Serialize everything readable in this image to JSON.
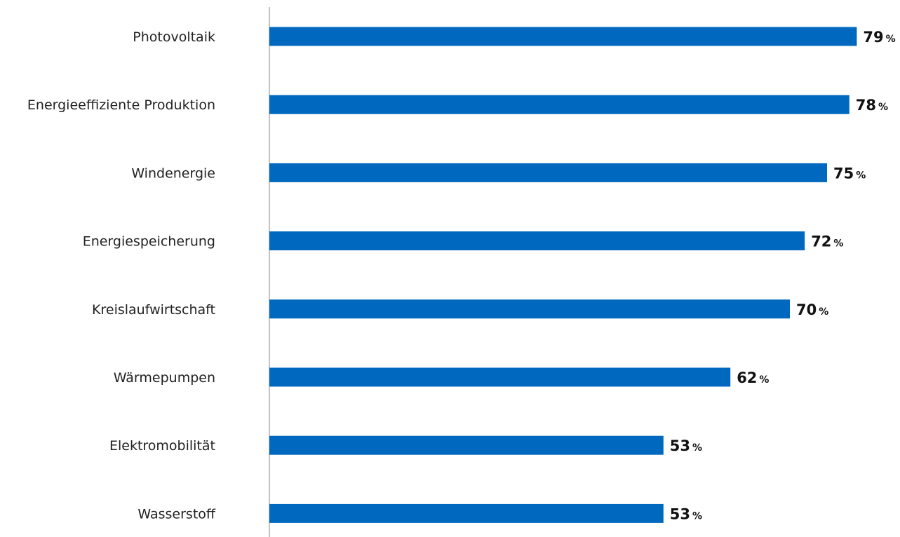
{
  "chart_data": {
    "type": "bar",
    "orientation": "horizontal",
    "title": "",
    "xlabel": "",
    "ylabel": "",
    "unit": "%",
    "categories": [
      "Photovoltaik",
      "Energieeffiziente Produktion",
      "Windenergie",
      "Energiespeicherung",
      "Kreislaufwirtschaft",
      "Wärmepumpen",
      "Elektromobilität",
      "Wasserstoff"
    ],
    "values": [
      79,
      78,
      75,
      72,
      70,
      62,
      53,
      53
    ],
    "value_labels": [
      "79",
      "78",
      "75",
      "72",
      "70",
      "62",
      "53",
      "53"
    ],
    "xlim": [
      0,
      100
    ],
    "grid": false,
    "legend": "none",
    "colors": {
      "bar": "#0069BF",
      "axis": "#888888",
      "label_text": "#222222",
      "value_text": "#111111"
    }
  }
}
